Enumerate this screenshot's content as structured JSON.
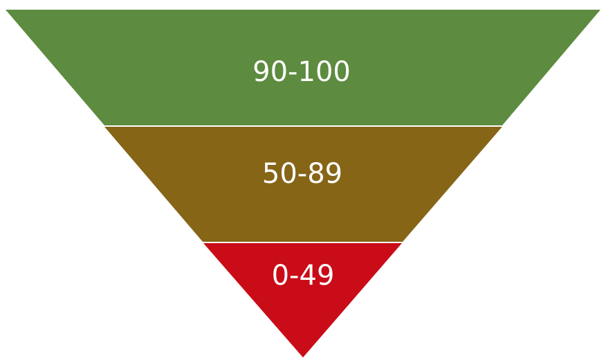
{
  "funnel": {
    "tiers": [
      {
        "label": "90-100",
        "color": "#5d8b3f"
      },
      {
        "label": "50-89",
        "color": "#866517"
      },
      {
        "label": "0-49",
        "color": "#c90c17"
      }
    ]
  }
}
